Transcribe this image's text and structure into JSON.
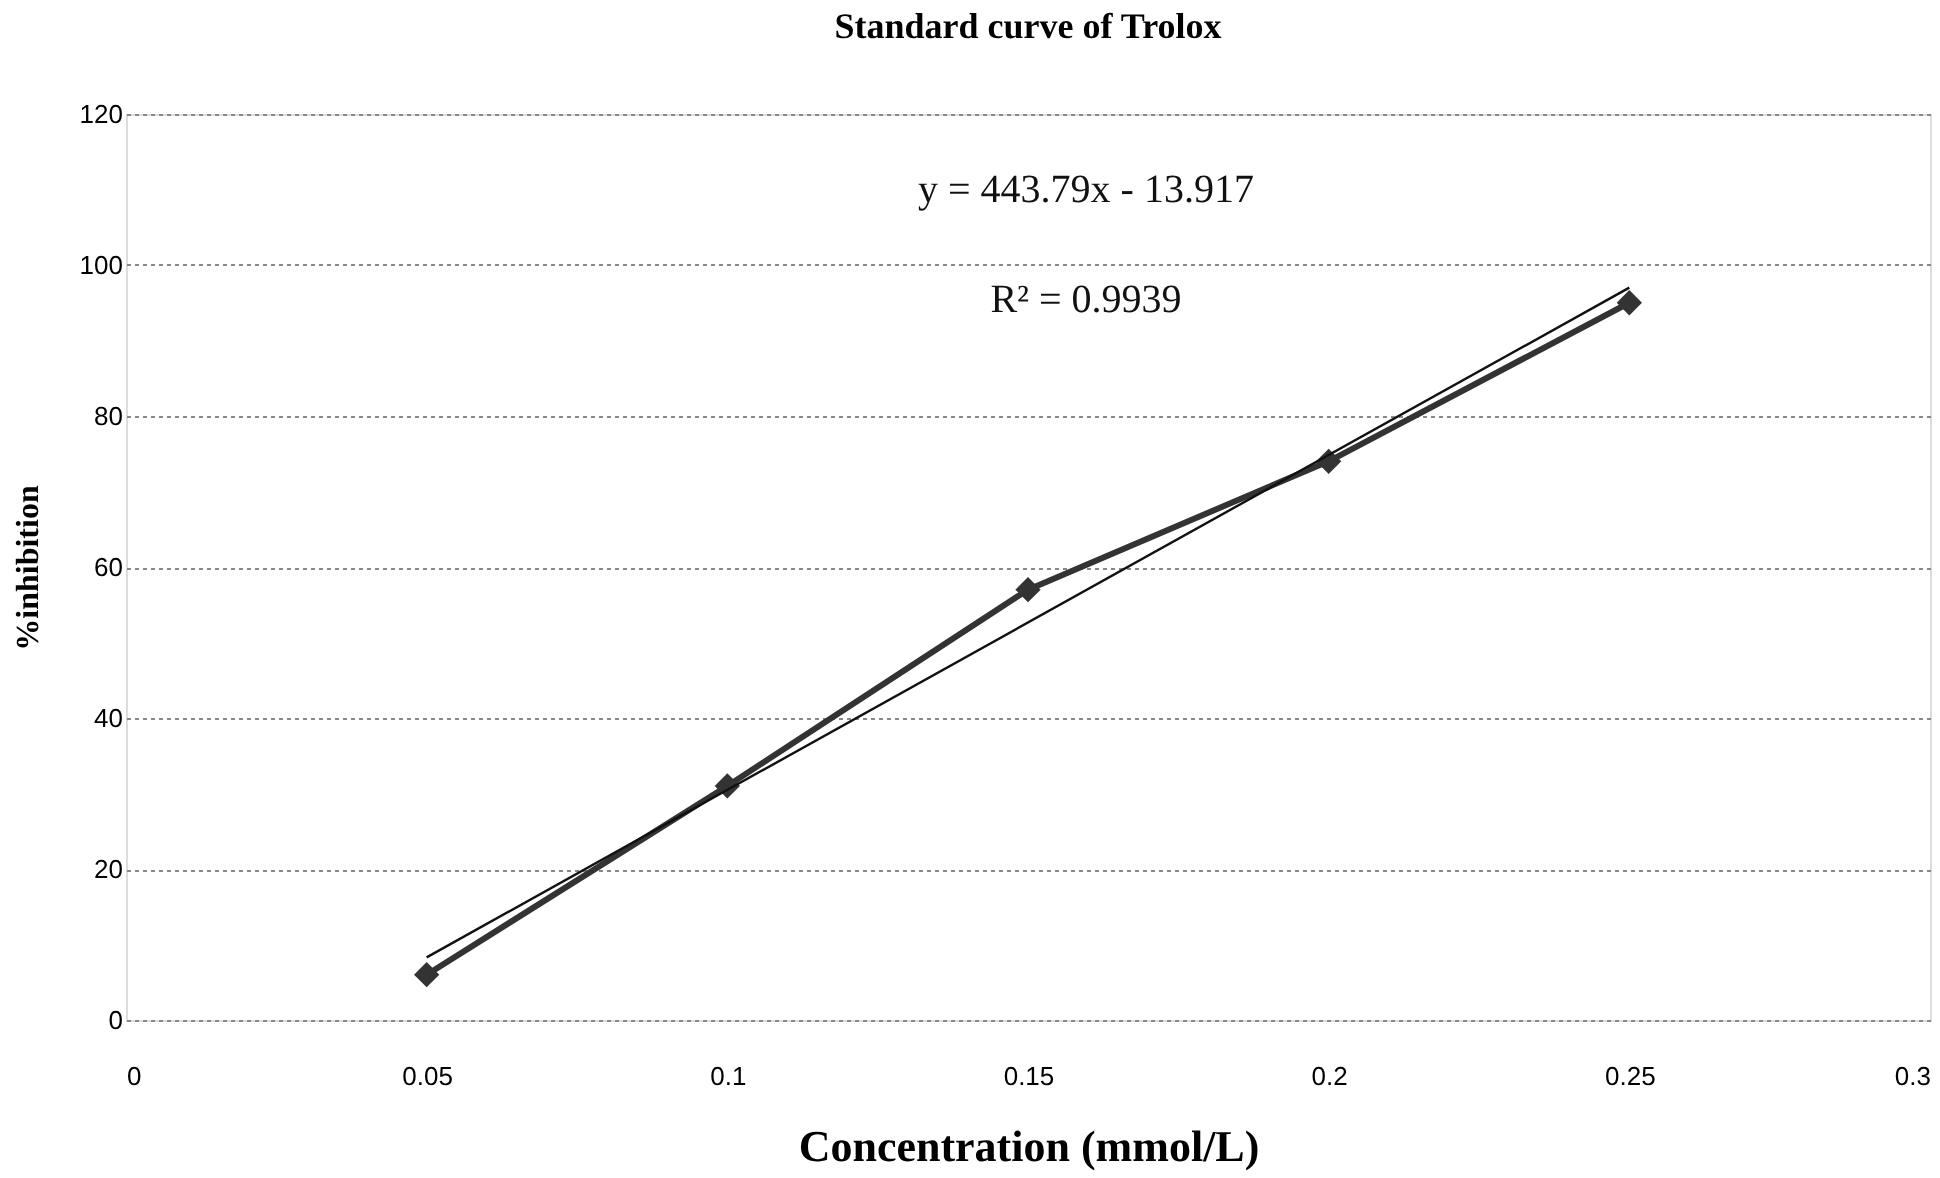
{
  "chart_data": {
    "type": "line",
    "title": "Standard curve of Trolox",
    "xlabel": "Concentration (mmol/L)",
    "ylabel": "%inhibition",
    "x": [
      0.05,
      0.1,
      0.15,
      0.2,
      0.25
    ],
    "series": [
      {
        "color": "#333333",
        "values": [
          6,
          31,
          57,
          74,
          95
        ],
        "marker": "diamond"
      },
      {
        "type": "line",
        "color": "#111111",
        "x": [
          0.05,
          0.25
        ],
        "values": [
          8.3,
          97.0
        ],
        "marker": "none"
      }
    ],
    "xlim": [
      0,
      0.3
    ],
    "xticks": [
      0,
      0.05,
      0.1,
      0.15,
      0.2,
      0.25,
      0.3
    ],
    "ylim": [
      0,
      120
    ],
    "yticks": [
      0,
      20,
      40,
      60,
      80,
      100,
      120
    ],
    "grid": "y",
    "annotations": [
      "y = 443.79x - 13.917",
      "R² = 0.9939"
    ]
  }
}
